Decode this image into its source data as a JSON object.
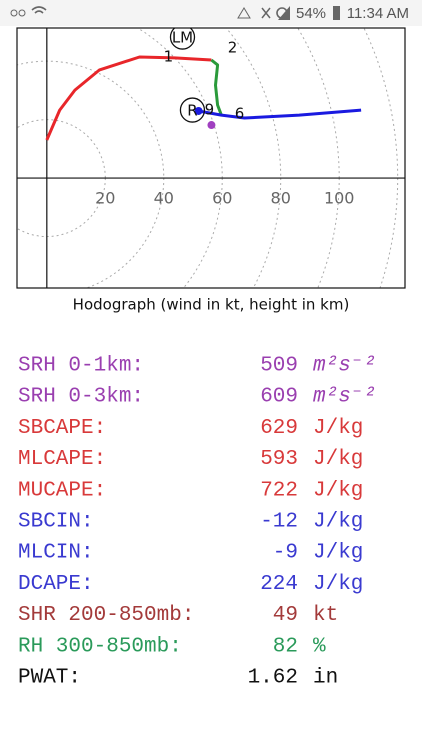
{
  "status_bar": {
    "battery": "54%",
    "time": "11:34 AM"
  },
  "chart_data": {
    "type": "hodograph",
    "xlabel": "Hodograph (wind in kt, height in km)",
    "xlim": [
      -10.2,
      122.5
    ],
    "ylim": [
      -37.5,
      51.2
    ],
    "xticks": [
      20,
      40,
      60,
      80,
      100
    ],
    "rings": [
      20,
      40,
      60,
      80,
      100,
      120
    ],
    "series": [
      {
        "color": "#e8262a",
        "x": [
          0,
          4.4,
          9.6,
          18,
          31.7,
          43.7,
          56.3
        ],
        "y": [
          13,
          23.2,
          30,
          36.9,
          41.3,
          41,
          40.3
        ]
      },
      {
        "color": "#2a9a3a",
        "x": [
          56.3,
          58.4,
          57.7,
          58.4,
          59.7
        ],
        "y": [
          40.3,
          38.6,
          31.7,
          24.9,
          21.5
        ]
      },
      {
        "color": "#1a1ae0",
        "x": [
          51.9,
          59.7,
          67.6,
          86.3,
          107.5
        ],
        "y": [
          22.9,
          21.5,
          20.5,
          21.5,
          23.2
        ]
      }
    ],
    "markers": [
      {
        "label": "1",
        "x": 41.6,
        "y": 41.3
      },
      {
        "label": "2",
        "x": 63.5,
        "y": 44.4
      },
      {
        "label": "9",
        "x": 55.6,
        "y": 23.2
      },
      {
        "label": "6",
        "x": 65.9,
        "y": 21.8
      }
    ],
    "circled": [
      {
        "label": "LM",
        "x": 46.4,
        "y": 48.1
      },
      {
        "label": "R",
        "x": 49.8,
        "y": 23.2
      }
    ],
    "dots": [
      {
        "color": "#a040c0",
        "x": 56.3,
        "y": 18.1
      },
      {
        "color": "#1a1ae0",
        "x": 51.9,
        "y": 22.9
      }
    ]
  },
  "table": {
    "rows": [
      {
        "label": "SRH 0-1km:",
        "value": "509",
        "unit": "m²s⁻²",
        "color": "#9a3fb0"
      },
      {
        "label": "SRH 0-3km:",
        "value": "609",
        "unit": "m²s⁻²",
        "color": "#9a3fb0"
      },
      {
        "label": "SBCAPE:",
        "value": "629",
        "unit": "J/kg",
        "color": "#d8393a"
      },
      {
        "label": "MLCAPE:",
        "value": "593",
        "unit": "J/kg",
        "color": "#d8393a"
      },
      {
        "label": "MUCAPE:",
        "value": "722",
        "unit": "J/kg",
        "color": "#d8393a"
      },
      {
        "label": "SBCIN:",
        "value": "-12",
        "unit": "J/kg",
        "color": "#3a3ad0"
      },
      {
        "label": "MLCIN:",
        "value": "-9",
        "unit": "J/kg",
        "color": "#3a3ad0"
      },
      {
        "label": "DCAPE:",
        "value": "224",
        "unit": "J/kg",
        "color": "#3a3ad0"
      },
      {
        "label": "SHR 200-850mb:",
        "value": "49",
        "unit": "kt",
        "color": "#a33a3a"
      },
      {
        "label": "RH 300-850mb:",
        "value": "82",
        "unit": "%",
        "color": "#2a9a5a"
      },
      {
        "label": "PWAT:",
        "value": "1.62",
        "unit": "in",
        "color": "#111111"
      }
    ]
  }
}
